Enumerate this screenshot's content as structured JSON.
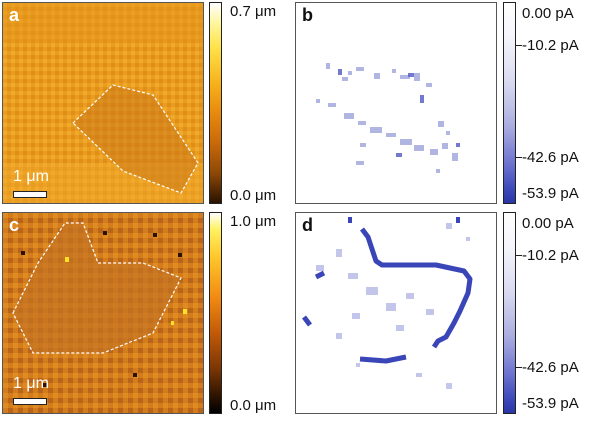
{
  "panels": {
    "a": {
      "label": "a",
      "scalebar": "1 μm"
    },
    "b": {
      "label": "b"
    },
    "c": {
      "label": "c",
      "scalebar": "1 μm"
    },
    "d": {
      "label": "d"
    }
  },
  "colorbars": {
    "a": {
      "top": "0.7 μm",
      "bottom": "0.0 μm"
    },
    "c": {
      "top": "1.0 μm",
      "bottom": "0.0 μm"
    },
    "b": {
      "t0": "0.00 pA",
      "t1": "-10.2 pA",
      "t2": "-42.6 pA",
      "t3": "-53.9 pA"
    },
    "d": {
      "t0": "0.00 pA",
      "t1": "-10.2 pA",
      "t2": "-42.6 pA",
      "t3": "-53.9 pA"
    }
  },
  "colors": {
    "topo_a_base": "#e89a1e",
    "topo_c_base": "#d07a1c",
    "current_blue": "#3a46b8",
    "outline": "#ffffff"
  }
}
